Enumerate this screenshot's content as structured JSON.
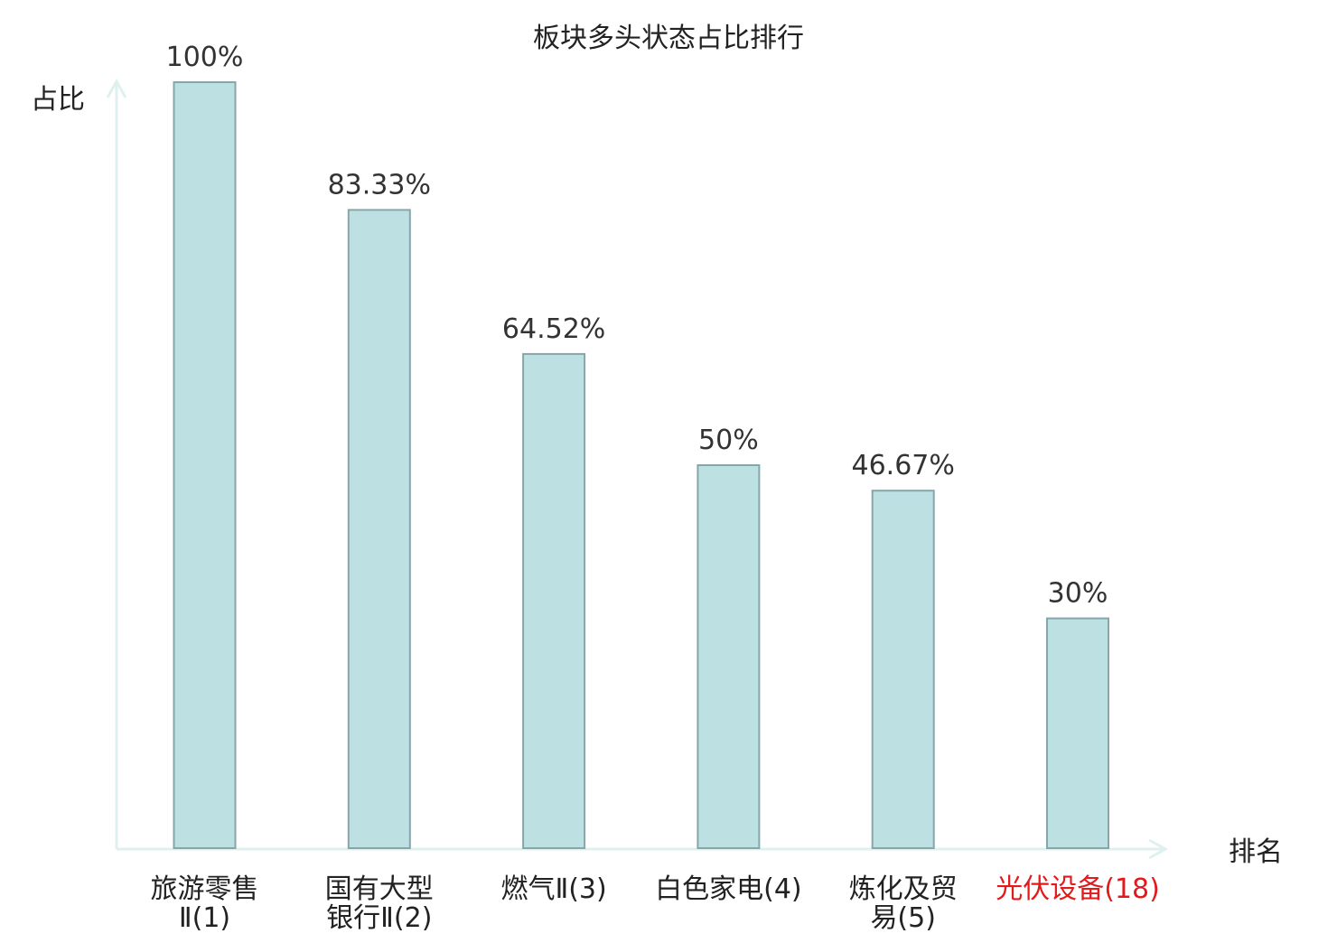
{
  "colors": {
    "bar_fill": "#bde0e3",
    "bar_stroke": "#87a6aa",
    "axis": "#dff1ef",
    "text": "#333333",
    "highlight": "#e31a1c"
  },
  "chart_data": {
    "type": "bar",
    "title": "板块多头状态占比排行",
    "xlabel": "排名",
    "ylabel": "占比",
    "ylim": [
      0,
      100
    ],
    "grid": false,
    "categories": [
      {
        "lines": [
          "旅游零售",
          "Ⅱ(1)"
        ],
        "highlight": false
      },
      {
        "lines": [
          "国有大型",
          "银行Ⅱ(2)"
        ],
        "highlight": false
      },
      {
        "lines": [
          "燃气Ⅱ(3)"
        ],
        "highlight": false
      },
      {
        "lines": [
          "白色家电(4)"
        ],
        "highlight": false
      },
      {
        "lines": [
          "炼化及贸",
          "易(5)"
        ],
        "highlight": false
      },
      {
        "lines": [
          "光伏设备(18)"
        ],
        "highlight": true
      }
    ],
    "values": [
      100,
      83.33,
      64.52,
      50,
      46.67,
      30
    ],
    "value_labels": [
      "100%",
      "83.33%",
      "64.52%",
      "50%",
      "46.67%",
      "30%"
    ]
  }
}
